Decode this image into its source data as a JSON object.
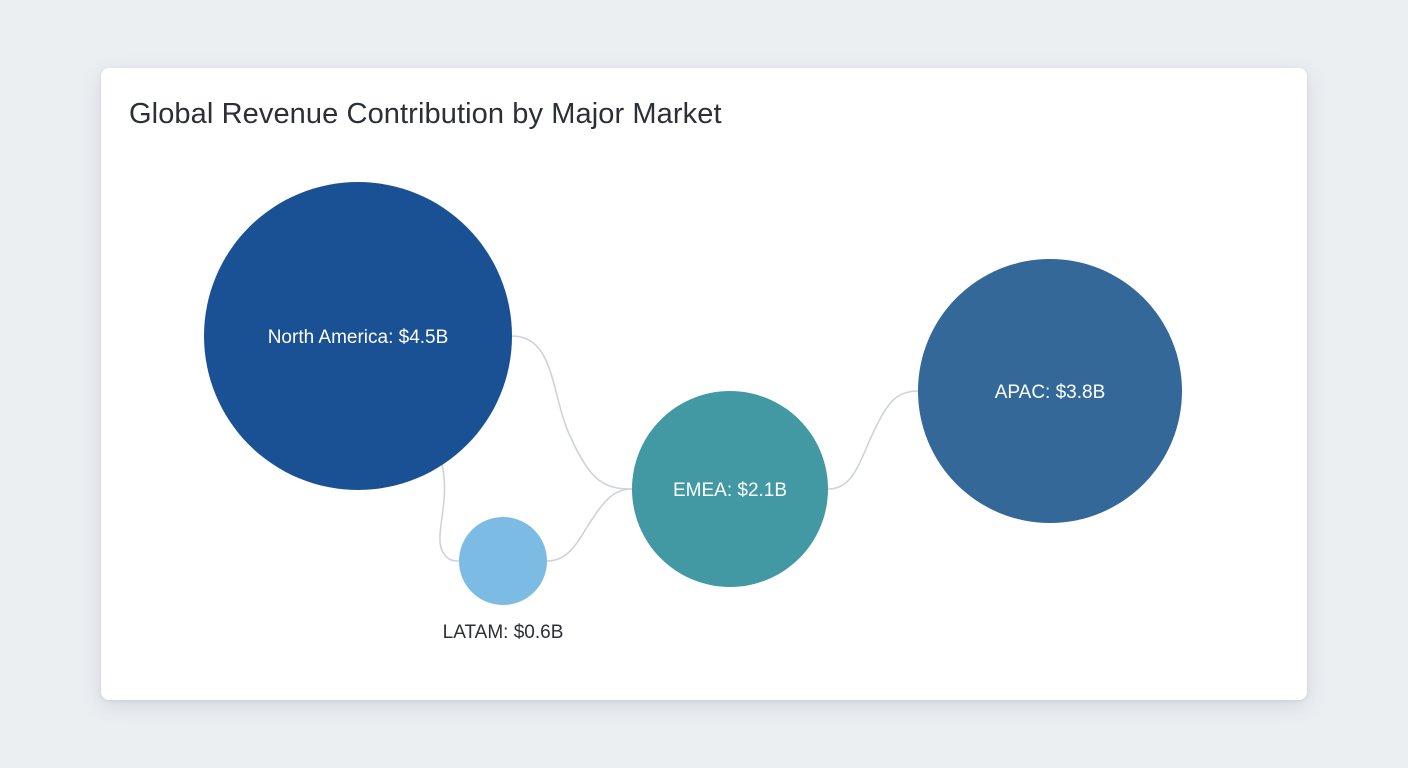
{
  "chart_data": {
    "type": "bubble",
    "title": "Global Revenue Contribution by Major Market",
    "unit": "$B",
    "series": [
      {
        "name": "North America",
        "value": 4.5,
        "label": "North America: $4.5B",
        "color": "#1a5194",
        "label_position": "inside"
      },
      {
        "name": "LATAM",
        "value": 0.6,
        "label": "LATAM: $0.6B",
        "color": "#7cbbe3",
        "label_position": "below"
      },
      {
        "name": "EMEA",
        "value": 2.1,
        "label": "EMEA: $2.1B",
        "color": "#4298a3",
        "label_position": "inside"
      },
      {
        "name": "APAC",
        "value": 3.8,
        "label": "APAC: $3.8B",
        "color": "#336899",
        "label_position": "inside"
      }
    ],
    "connections": [
      [
        "North America",
        "EMEA"
      ],
      [
        "North America",
        "LATAM"
      ],
      [
        "LATAM",
        "EMEA"
      ],
      [
        "EMEA",
        "APAC"
      ]
    ],
    "colors": {
      "connector": "#cfd3d8",
      "label_inside": "#ffffff",
      "label_outside": "#2b2f36"
    }
  }
}
